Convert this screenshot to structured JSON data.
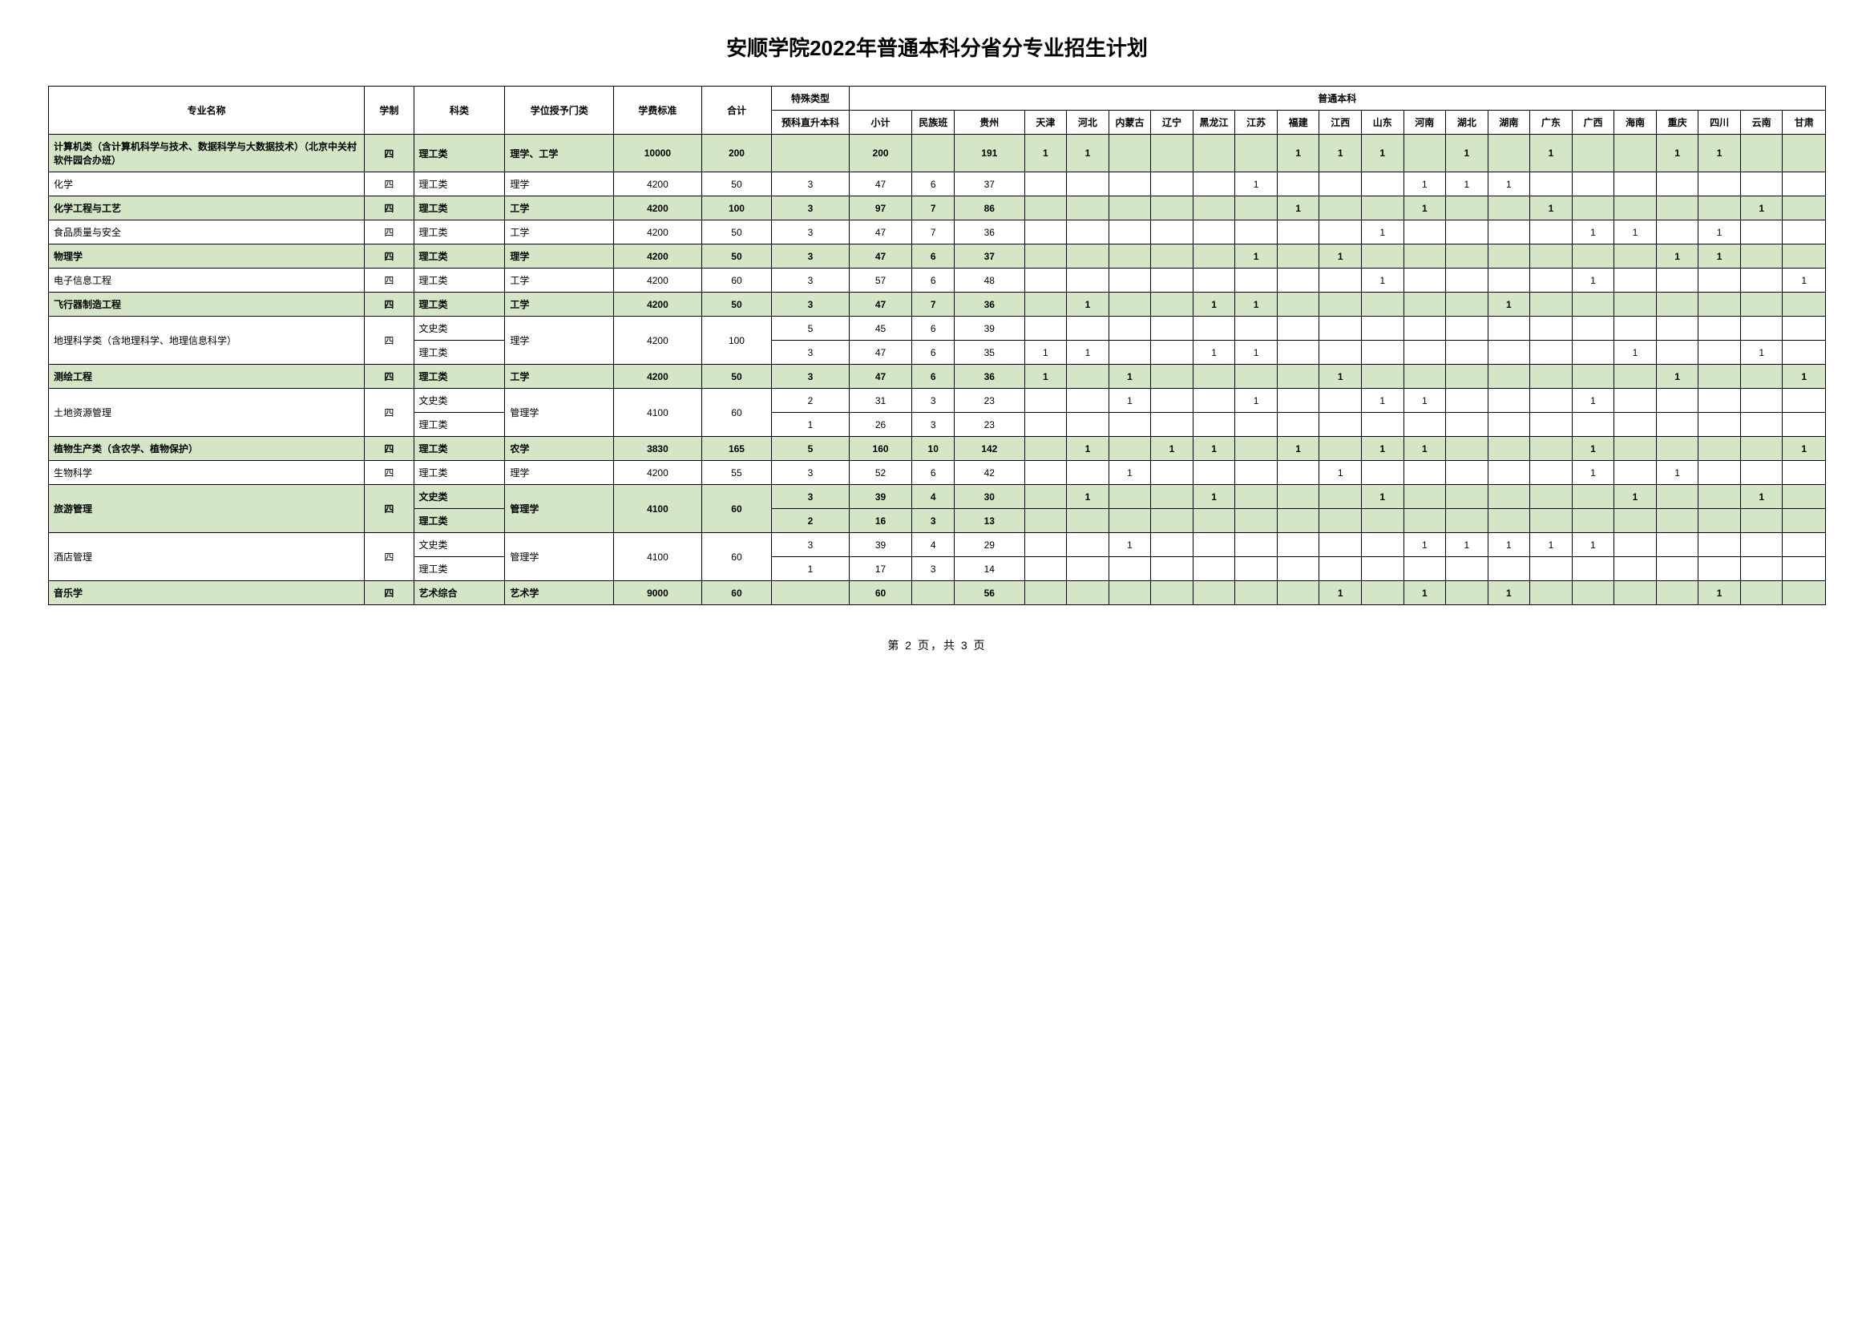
{
  "title": "安顺学院2022年普通本科分省分专业招生计划",
  "footer": "第 2 页，共 3 页",
  "headers": {
    "major": "专业名称",
    "xuezhi": "学制",
    "kelei": "科类",
    "xuewei": "学位授予门类",
    "fee": "学费标准",
    "total": "合计",
    "teshu": "特殊类型",
    "yuke": "预科直升本科",
    "putong": "普通本科",
    "xiaoji": "小计",
    "minzu": "民族班",
    "provinces": [
      "贵州",
      "天津",
      "河北",
      "内蒙古",
      "辽宁",
      "黑龙江",
      "江苏",
      "福建",
      "江西",
      "山东",
      "河南",
      "湖北",
      "湖南",
      "广东",
      "广西",
      "海南",
      "重庆",
      "四川",
      "云南",
      "甘肃"
    ]
  },
  "rows": [
    {
      "alt": true,
      "bold": true,
      "major": "计算机类（含计算机科学与技术、数据科学与大数据技术）（北京中关村软件园合办班）",
      "xz": "四",
      "kl": "理工类",
      "xw": "理学、工学",
      "fee": "10000",
      "total": "200",
      "yk": "",
      "xj": "200",
      "mz": "",
      "p": [
        "191",
        "1",
        "1",
        "",
        "",
        "",
        "",
        "1",
        "1",
        "1",
        "",
        "1",
        "",
        "1",
        "",
        "",
        "1",
        "1",
        "",
        ""
      ]
    },
    {
      "alt": false,
      "major": "化学",
      "xz": "四",
      "kl": "理工类",
      "xw": "理学",
      "fee": "4200",
      "total": "50",
      "yk": "3",
      "xj": "47",
      "mz": "6",
      "p": [
        "37",
        "",
        "",
        "",
        "",
        "",
        "1",
        "",
        "",
        "",
        "1",
        "1",
        "1",
        "",
        "",
        "",
        "",
        "",
        "",
        ""
      ]
    },
    {
      "alt": true,
      "bold": true,
      "major": "化学工程与工艺",
      "xz": "四",
      "kl": "理工类",
      "xw": "工学",
      "fee": "4200",
      "total": "100",
      "yk": "3",
      "xj": "97",
      "mz": "7",
      "p": [
        "86",
        "",
        "",
        "",
        "",
        "",
        "",
        "1",
        "",
        "",
        "1",
        "",
        "",
        "1",
        "",
        "",
        "",
        "",
        "1",
        ""
      ]
    },
    {
      "alt": false,
      "major": "食品质量与安全",
      "xz": "四",
      "kl": "理工类",
      "xw": "工学",
      "fee": "4200",
      "total": "50",
      "yk": "3",
      "xj": "47",
      "mz": "7",
      "p": [
        "36",
        "",
        "",
        "",
        "",
        "",
        "",
        "",
        "",
        "1",
        "",
        "",
        "",
        "",
        "1",
        "1",
        "",
        "1",
        "",
        ""
      ]
    },
    {
      "alt": true,
      "bold": true,
      "major": "物理学",
      "xz": "四",
      "kl": "理工类",
      "xw": "理学",
      "fee": "4200",
      "total": "50",
      "yk": "3",
      "xj": "47",
      "mz": "6",
      "p": [
        "37",
        "",
        "",
        "",
        "",
        "",
        "1",
        "",
        "1",
        "",
        "",
        "",
        "",
        "",
        "",
        "",
        "1",
        "1",
        "",
        ""
      ]
    },
    {
      "alt": false,
      "major": "电子信息工程",
      "xz": "四",
      "kl": "理工类",
      "xw": "工学",
      "fee": "4200",
      "total": "60",
      "yk": "3",
      "xj": "57",
      "mz": "6",
      "p": [
        "48",
        "",
        "",
        "",
        "",
        "",
        "",
        "",
        "",
        "1",
        "",
        "",
        "",
        "",
        "1",
        "",
        "",
        "",
        "",
        "1"
      ]
    },
    {
      "alt": true,
      "bold": true,
      "major": "飞行器制造工程",
      "xz": "四",
      "kl": "理工类",
      "xw": "工学",
      "fee": "4200",
      "total": "50",
      "yk": "3",
      "xj": "47",
      "mz": "7",
      "p": [
        "36",
        "",
        "1",
        "",
        "",
        "1",
        "1",
        "",
        "",
        "",
        "",
        "",
        "1",
        "",
        "",
        "",
        "",
        "",
        "",
        ""
      ]
    },
    {
      "alt": false,
      "rowspan": 2,
      "major": "地理科学类（含地理科学、地理信息科学）",
      "xz": "四",
      "kl": "文史类",
      "xw": "理学",
      "fee": "4200",
      "total": "100",
      "yk": "5",
      "xj": "45",
      "mz": "6",
      "p": [
        "39",
        "",
        "",
        "",
        "",
        "",
        "",
        "",
        "",
        "",
        "",
        "",
        "",
        "",
        "",
        "",
        "",
        "",
        "",
        ""
      ]
    },
    {
      "alt": false,
      "sub": true,
      "kl": "理工类",
      "yk": "3",
      "xj": "47",
      "mz": "6",
      "p": [
        "35",
        "1",
        "1",
        "",
        "",
        "1",
        "1",
        "",
        "",
        "",
        "",
        "",
        "",
        "",
        "",
        "1",
        "",
        "",
        "1",
        ""
      ]
    },
    {
      "alt": true,
      "bold": true,
      "major": "测绘工程",
      "xz": "四",
      "kl": "理工类",
      "xw": "工学",
      "fee": "4200",
      "total": "50",
      "yk": "3",
      "xj": "47",
      "mz": "6",
      "p": [
        "36",
        "1",
        "",
        "1",
        "",
        "",
        "",
        "",
        "1",
        "",
        "",
        "",
        "",
        "",
        "",
        "",
        "1",
        "",
        "",
        "1"
      ]
    },
    {
      "alt": false,
      "rowspan": 2,
      "major": "土地资源管理",
      "xz": "四",
      "kl": "文史类",
      "xw": "管理学",
      "fee": "4100",
      "total": "60",
      "yk": "2",
      "xj": "31",
      "mz": "3",
      "p": [
        "23",
        "",
        "",
        "1",
        "",
        "",
        "1",
        "",
        "",
        "1",
        "1",
        "",
        "",
        "",
        "1",
        "",
        "",
        "",
        "",
        ""
      ]
    },
    {
      "alt": false,
      "sub": true,
      "kl": "理工类",
      "yk": "1",
      "xj": "26",
      "mz": "3",
      "p": [
        "23",
        "",
        "",
        "",
        "",
        "",
        "",
        "",
        "",
        "",
        "",
        "",
        "",
        "",
        "",
        "",
        "",
        "",
        "",
        ""
      ]
    },
    {
      "alt": true,
      "bold": true,
      "major": "植物生产类（含农学、植物保护）",
      "xz": "四",
      "kl": "理工类",
      "xw": "农学",
      "fee": "3830",
      "total": "165",
      "yk": "5",
      "xj": "160",
      "mz": "10",
      "p": [
        "142",
        "",
        "1",
        "",
        "1",
        "1",
        "",
        "1",
        "",
        "1",
        "1",
        "",
        "",
        "",
        "1",
        "",
        "",
        "",
        "",
        "1"
      ]
    },
    {
      "alt": false,
      "major": "生物科学",
      "xz": "四",
      "kl": "理工类",
      "xw": "理学",
      "fee": "4200",
      "total": "55",
      "yk": "3",
      "xj": "52",
      "mz": "6",
      "p": [
        "42",
        "",
        "",
        "1",
        "",
        "",
        "",
        "",
        "1",
        "",
        "",
        "",
        "",
        "",
        "1",
        "",
        "1",
        "",
        "",
        ""
      ]
    },
    {
      "alt": true,
      "bold": true,
      "rowspan": 2,
      "major": "旅游管理",
      "xz": "四",
      "kl": "文史类",
      "xw": "管理学",
      "fee": "4100",
      "total": "60",
      "yk": "3",
      "xj": "39",
      "mz": "4",
      "p": [
        "30",
        "",
        "1",
        "",
        "",
        "1",
        "",
        "",
        "",
        "1",
        "",
        "",
        "",
        "",
        "",
        "1",
        "",
        "",
        "1",
        ""
      ]
    },
    {
      "alt": true,
      "bold": true,
      "sub": true,
      "kl": "理工类",
      "yk": "2",
      "xj": "16",
      "mz": "3",
      "p": [
        "13",
        "",
        "",
        "",
        "",
        "",
        "",
        "",
        "",
        "",
        "",
        "",
        "",
        "",
        "",
        "",
        "",
        "",
        "",
        ""
      ]
    },
    {
      "alt": false,
      "rowspan": 2,
      "major": "酒店管理",
      "xz": "四",
      "kl": "文史类",
      "xw": "管理学",
      "fee": "4100",
      "total": "60",
      "yk": "3",
      "xj": "39",
      "mz": "4",
      "p": [
        "29",
        "",
        "",
        "1",
        "",
        "",
        "",
        "",
        "",
        "",
        "1",
        "1",
        "1",
        "1",
        "1",
        "",
        "",
        "",
        "",
        ""
      ]
    },
    {
      "alt": false,
      "sub": true,
      "kl": "理工类",
      "yk": "1",
      "xj": "17",
      "mz": "3",
      "p": [
        "14",
        "",
        "",
        "",
        "",
        "",
        "",
        "",
        "",
        "",
        "",
        "",
        "",
        "",
        "",
        "",
        "",
        "",
        "",
        ""
      ]
    },
    {
      "alt": true,
      "bold": true,
      "major": "音乐学",
      "xz": "四",
      "kl": "艺术综合",
      "xw": "艺术学",
      "fee": "9000",
      "total": "60",
      "yk": "",
      "xj": "60",
      "mz": "",
      "p": [
        "56",
        "",
        "",
        "",
        "",
        "",
        "",
        "",
        "1",
        "",
        "1",
        "",
        "1",
        "",
        "",
        "",
        "",
        "1",
        "",
        ""
      ]
    }
  ]
}
